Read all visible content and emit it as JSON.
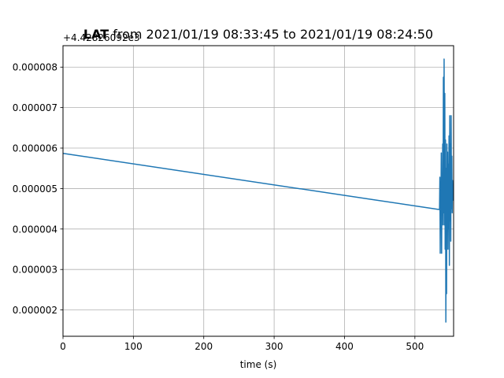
{
  "chart_data": {
    "type": "line",
    "title": "LAT from 2021/01/19 08:33:45 to 2021/01/19 08:24:50",
    "title_bold_part": "LAT",
    "title_rest": " from 2021/01/19 08:33:45 to 2021/01/19 08:24:50",
    "offset_label": "+4.42826092e3",
    "xlabel": "time (s)",
    "ylabel": "",
    "xlim": [
      0,
      555
    ],
    "ylim": [
      1.35e-06,
      8.53e-06
    ],
    "x_ticks": [
      0,
      100,
      200,
      300,
      400,
      500
    ],
    "x_tick_labels": [
      "0",
      "100",
      "200",
      "300",
      "400",
      "500"
    ],
    "y_ticks": [
      2e-06,
      3e-06,
      4e-06,
      5e-06,
      6e-06,
      7e-06,
      8e-06
    ],
    "y_tick_labels": [
      "0.000002",
      "0.000003",
      "0.000004",
      "0.000005",
      "0.000006",
      "0.000007",
      "0.000008"
    ],
    "grid": true,
    "line_color": "#1f77b4",
    "series": [
      {
        "x": [
          0,
          535,
          535.5,
          536,
          536.5,
          537,
          537.5,
          538,
          538.5,
          539,
          539.5,
          540,
          540.5,
          541,
          541.5,
          542,
          542.5,
          543,
          543.5,
          544,
          544.5,
          545,
          545.5,
          546,
          546.5,
          547,
          547.5,
          548,
          548.5,
          549,
          549.5,
          550,
          550.5,
          551,
          551.5,
          552,
          552.5,
          553,
          553.5,
          554
        ],
        "y": [
          5.87e-06,
          4.48e-06,
          5.28e-06,
          3.4e-06,
          5.08e-06,
          4.6e-06,
          5.88e-06,
          3.4e-06,
          5.3e-06,
          4.4e-06,
          6.1e-06,
          4.1e-06,
          7.75e-06,
          4.4e-06,
          8.2e-06,
          4.1e-06,
          7.35e-06,
          3.5e-06,
          6.2e-06,
          1.7e-06,
          5.5e-06,
          2.4e-06,
          6.1e-06,
          4e-06,
          5.9e-06,
          3.5e-06,
          5.6e-06,
          4e-06,
          6.3e-06,
          3.1e-06,
          6.8e-06,
          4.2e-06,
          6.1e-06,
          3.7e-06,
          6.8e-06,
          4.5e-06,
          5.8e-06,
          4.4e-06,
          5.2e-06,
          4.7e-06
        ]
      }
    ]
  }
}
